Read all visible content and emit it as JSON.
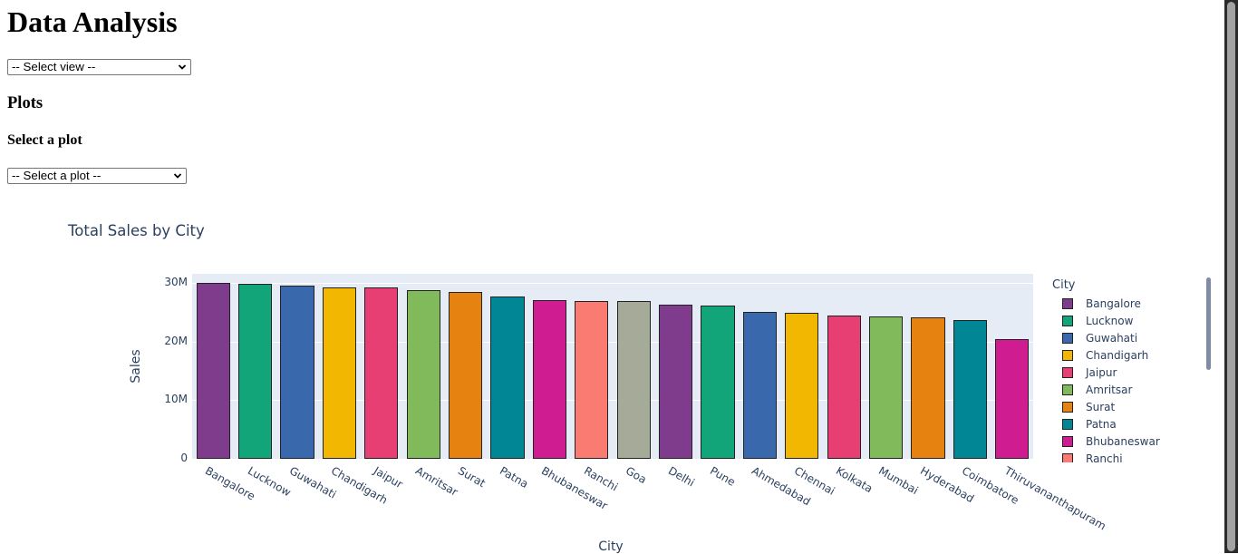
{
  "page": {
    "title": "Data Analysis",
    "view_select": {
      "selected": "-- Select view --"
    },
    "plots_heading": "Plots",
    "plot_select_label": "Select a plot",
    "plot_select": {
      "selected": "-- Select a plot --"
    }
  },
  "chart": {
    "title": "Total Sales by City",
    "xlabel": "City",
    "ylabel": "Sales",
    "yticks": [
      "0",
      "10M",
      "20M",
      "30M"
    ],
    "legend_title": "City",
    "legend_visible": [
      "Bangalore",
      "Lucknow",
      "Guwahati",
      "Chandigarh",
      "Jaipur",
      "Amritsar",
      "Surat",
      "Patna",
      "Bhubaneswar",
      "Ranchi"
    ]
  },
  "chart_data": {
    "type": "bar",
    "title": "Total Sales by City",
    "xlabel": "City",
    "ylabel": "Sales",
    "ylim": [
      0,
      31000000
    ],
    "yticks": [
      0,
      10000000,
      20000000,
      30000000
    ],
    "ytick_labels": [
      "0",
      "10M",
      "20M",
      "30M"
    ],
    "grid": true,
    "legend_position": "right",
    "legend_title": "City",
    "categories": [
      "Bangalore",
      "Lucknow",
      "Guwahati",
      "Chandigarh",
      "Jaipur",
      "Amritsar",
      "Surat",
      "Patna",
      "Bhubaneswar",
      "Ranchi",
      "Goa",
      "Delhi",
      "Pune",
      "Ahmedabad",
      "Chennai",
      "Kolkata",
      "Mumbai",
      "Hyderabad",
      "Coimbatore",
      "Thiruvananthapuram"
    ],
    "values": [
      30000000,
      29800000,
      29500000,
      29200000,
      29200000,
      28700000,
      28400000,
      27700000,
      27000000,
      26900000,
      26900000,
      26300000,
      26100000,
      25000000,
      24900000,
      24400000,
      24300000,
      24200000,
      23600000,
      20400000
    ],
    "colors": [
      "#7f3c8d",
      "#11a579",
      "#3969ac",
      "#f2b701",
      "#e73f74",
      "#80ba5a",
      "#e68310",
      "#008695",
      "#cf1c90",
      "#f97b72",
      "#a5aa99",
      "#7f3c8d",
      "#11a579",
      "#3969ac",
      "#f2b701",
      "#e73f74",
      "#80ba5a",
      "#e68310",
      "#008695",
      "#cf1c90"
    ]
  }
}
